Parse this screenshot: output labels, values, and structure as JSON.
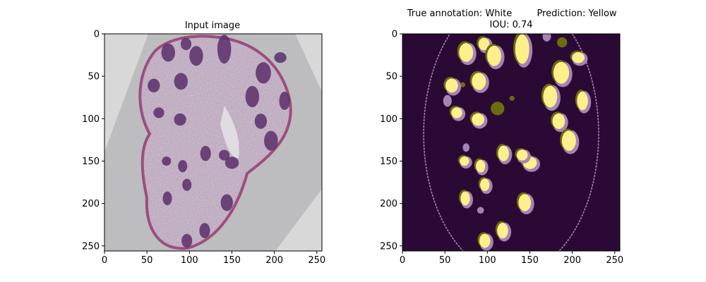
{
  "chart_data": [
    {
      "type": "image",
      "title": "Input image",
      "xlim": [
        0,
        256
      ],
      "ylim": [
        256,
        0
      ],
      "xticks": [
        0,
        50,
        100,
        150,
        200,
        250
      ],
      "yticks": [
        0,
        50,
        100,
        150,
        200,
        250
      ],
      "image": {
        "background": "#d8d8d8",
        "tissue_color": "#c9bcc8",
        "nucleus_color": "#5a2f6b",
        "border_color": "#9c4a7a"
      }
    },
    {
      "type": "image",
      "title_left": "True annotation: White",
      "title_right": "Prediction: Yellow",
      "subtitle": "IOU: 0.74",
      "iou": 0.74,
      "xlim": [
        0,
        256
      ],
      "ylim": [
        256,
        0
      ],
      "xticks": [
        0,
        50,
        100,
        150,
        200,
        250
      ],
      "yticks": [
        0,
        50,
        100,
        150,
        200,
        250
      ],
      "colors": {
        "background": "#2a0a35",
        "true_only": "#a583b5",
        "predicted_only": "#6d6a12",
        "overlap": "#fdf08c",
        "boundary": "#a583b5"
      },
      "objects": [
        {
          "x": 75,
          "y": 22,
          "rx": 9,
          "ry": 12
        },
        {
          "x": 96,
          "y": 12,
          "rx": 7,
          "ry": 8
        },
        {
          "x": 108,
          "y": 26,
          "rx": 9,
          "ry": 13
        },
        {
          "x": 141,
          "y": 18,
          "rx": 9,
          "ry": 19
        },
        {
          "x": 187,
          "y": 46,
          "rx": 10,
          "ry": 14
        },
        {
          "x": 207,
          "y": 28,
          "rx": 8,
          "ry": 7
        },
        {
          "x": 90,
          "y": 56,
          "rx": 9,
          "ry": 11
        },
        {
          "x": 58,
          "y": 61,
          "rx": 8,
          "ry": 9
        },
        {
          "x": 174,
          "y": 74,
          "rx": 9,
          "ry": 14
        },
        {
          "x": 212,
          "y": 79,
          "rx": 7,
          "ry": 12
        },
        {
          "x": 64,
          "y": 93,
          "rx": 7,
          "ry": 7
        },
        {
          "x": 89,
          "y": 101,
          "rx": 8,
          "ry": 8
        },
        {
          "x": 184,
          "y": 103,
          "rx": 8,
          "ry": 10
        },
        {
          "x": 196,
          "y": 126,
          "rx": 9,
          "ry": 13
        },
        {
          "x": 119,
          "y": 141,
          "rx": 7,
          "ry": 10
        },
        {
          "x": 150,
          "y": 152,
          "rx": 9,
          "ry": 8
        },
        {
          "x": 141,
          "y": 143,
          "rx": 7,
          "ry": 7
        },
        {
          "x": 73,
          "y": 150,
          "rx": 6,
          "ry": 6
        },
        {
          "x": 92,
          "y": 156,
          "rx": 6,
          "ry": 8
        },
        {
          "x": 97,
          "y": 178,
          "rx": 6,
          "ry": 8
        },
        {
          "x": 74,
          "y": 194,
          "rx": 6,
          "ry": 9
        },
        {
          "x": 144,
          "y": 199,
          "rx": 8,
          "ry": 11
        },
        {
          "x": 118,
          "y": 232,
          "rx": 7,
          "ry": 10
        },
        {
          "x": 97,
          "y": 244,
          "rx": 7,
          "ry": 9
        }
      ],
      "false_positives": [
        {
          "x": 188,
          "y": 10,
          "rx": 6,
          "ry": 6
        },
        {
          "x": 112,
          "y": 88,
          "rx": 8,
          "ry": 8
        },
        {
          "x": 129,
          "y": 76,
          "rx": 3,
          "ry": 3
        },
        {
          "x": 71,
          "y": 60,
          "rx": 3,
          "ry": 3
        }
      ],
      "false_negatives": [
        {
          "x": 53,
          "y": 79,
          "rx": 5,
          "ry": 7
        },
        {
          "x": 170,
          "y": 3,
          "rx": 5,
          "ry": 6
        },
        {
          "x": 92,
          "y": 208,
          "rx": 4,
          "ry": 4
        },
        {
          "x": 75,
          "y": 134,
          "rx": 4,
          "ry": 5
        }
      ],
      "boundary": {
        "cx": 128,
        "cy": 118,
        "rx": 103,
        "ry": 165
      }
    }
  ]
}
